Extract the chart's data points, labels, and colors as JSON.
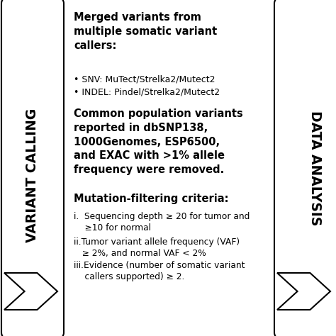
{
  "bg_color": "#f0f0f0",
  "box_color": "#ffffff",
  "box_edge_color": "#000000",
  "text_color": "#000000",
  "label_left": "VARIANT CALLING",
  "label_right": "DATA ANALYSIS",
  "title_text": "Merged variants from\nmultiple somatic variant\ncallers:",
  "bullet1": "• SNV: MuTect/Strelka2/Mutect2",
  "bullet2": "• INDEL: Pindel/Strelka2/Mutect2",
  "para2": "Common population variants\nreported in dbSNP138,\n1000Genomes, ESP6500,\nand EXAC with >1% allele\nfrequency were removed.",
  "criteria_title": "Mutation-filtering criteria:",
  "criteria1": "i.  Sequencing depth ≥ 20 for tumor and\n    ≥10 for normal",
  "criteria2": "ii.Tumor variant allele frequency (VAF)\n   ≥ 2%, and normal VAF < 2%",
  "criteria3": "iii.Evidence (number of somatic variant\n    callers supported) ≥ 2.",
  "arrow_color": "#ffffff",
  "arrow_edge_color": "#000000",
  "lw": 1.5,
  "fig_w": 4.74,
  "fig_h": 4.74,
  "dpi": 100
}
